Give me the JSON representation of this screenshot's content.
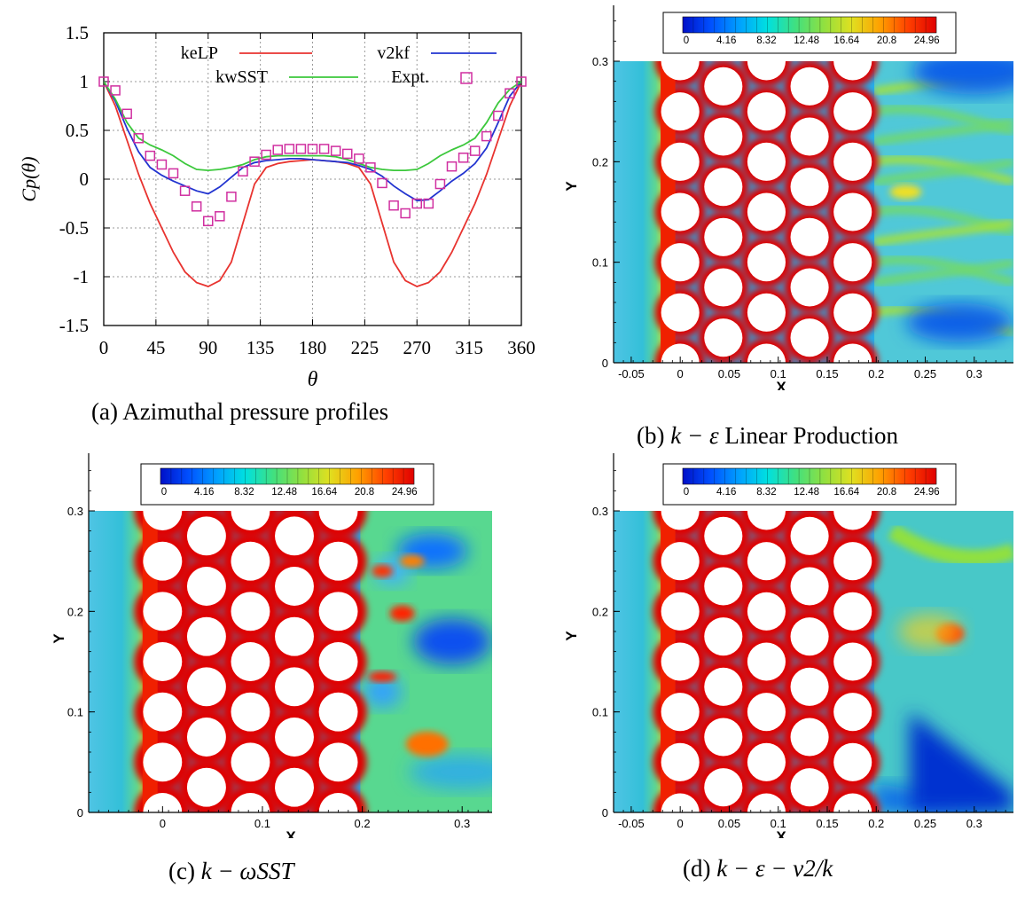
{
  "chart_data": [
    {
      "type": "line",
      "panel": "a",
      "caption": "(a) Azimuthal pressure profiles",
      "xlabel": "θ",
      "ylabel": "Cp(θ)",
      "xlim": [
        0,
        360
      ],
      "ylim": [
        -1.5,
        1.5
      ],
      "xticks": [
        0,
        45,
        90,
        135,
        180,
        225,
        270,
        315,
        360
      ],
      "yticks": [
        -1.5,
        -1,
        -0.5,
        0,
        0.5,
        1,
        1.5
      ],
      "xtick_labels": [
        "0",
        "45",
        "90",
        "135",
        "180",
        "225",
        "270",
        "315",
        "360"
      ],
      "ytick_labels": [
        "-1.5",
        "-1",
        "-0.5",
        "0",
        "0.5",
        "1",
        "1.5"
      ],
      "grid": true,
      "legend_placement": "top",
      "series": [
        {
          "name": "keLP",
          "color": "#e8332f",
          "style": "line",
          "x": [
            0,
            10,
            20,
            30,
            40,
            50,
            60,
            70,
            80,
            90,
            100,
            110,
            120,
            130,
            140,
            150,
            160,
            170,
            180,
            190,
            200,
            210,
            220,
            230,
            240,
            250,
            260,
            270,
            280,
            290,
            300,
            310,
            320,
            330,
            340,
            350,
            360
          ],
          "y": [
            1.0,
            0.75,
            0.4,
            0.05,
            -0.25,
            -0.5,
            -0.75,
            -0.95,
            -1.06,
            -1.1,
            -1.04,
            -0.85,
            -0.45,
            -0.05,
            0.12,
            0.16,
            0.18,
            0.19,
            0.2,
            0.19,
            0.18,
            0.16,
            0.12,
            -0.05,
            -0.45,
            -0.85,
            -1.04,
            -1.1,
            -1.06,
            -0.95,
            -0.75,
            -0.5,
            -0.25,
            0.05,
            0.4,
            0.75,
            1.0
          ]
        },
        {
          "name": "v2kf",
          "color": "#2234d0",
          "style": "line",
          "x": [
            0,
            10,
            20,
            30,
            40,
            50,
            60,
            70,
            80,
            90,
            100,
            110,
            120,
            130,
            140,
            150,
            160,
            170,
            180,
            190,
            200,
            210,
            220,
            230,
            240,
            250,
            260,
            270,
            280,
            290,
            300,
            310,
            320,
            330,
            340,
            350,
            360
          ],
          "y": [
            1.0,
            0.8,
            0.52,
            0.28,
            0.12,
            0.04,
            -0.02,
            -0.07,
            -0.12,
            -0.15,
            -0.08,
            0.02,
            0.12,
            0.17,
            0.19,
            0.2,
            0.21,
            0.21,
            0.2,
            0.19,
            0.18,
            0.17,
            0.14,
            0.1,
            0.03,
            -0.07,
            -0.15,
            -0.22,
            -0.21,
            -0.12,
            -0.02,
            0.06,
            0.16,
            0.32,
            0.58,
            0.85,
            1.0
          ]
        },
        {
          "name": "kwSST",
          "color": "#3cc83c",
          "style": "line",
          "x": [
            0,
            10,
            20,
            30,
            40,
            50,
            60,
            70,
            80,
            90,
            100,
            110,
            120,
            130,
            140,
            150,
            160,
            170,
            180,
            190,
            200,
            210,
            220,
            230,
            240,
            250,
            260,
            270,
            280,
            290,
            300,
            310,
            320,
            330,
            340,
            350,
            360
          ],
          "y": [
            1.0,
            0.82,
            0.58,
            0.42,
            0.35,
            0.3,
            0.24,
            0.16,
            0.1,
            0.09,
            0.1,
            0.12,
            0.15,
            0.2,
            0.23,
            0.24,
            0.24,
            0.24,
            0.24,
            0.24,
            0.23,
            0.2,
            0.16,
            0.12,
            0.1,
            0.09,
            0.09,
            0.1,
            0.16,
            0.24,
            0.3,
            0.35,
            0.42,
            0.58,
            0.78,
            0.92,
            1.0
          ]
        },
        {
          "name": "Expt.",
          "color": "#d02fa0",
          "style": "square-markers",
          "x": [
            0,
            10,
            20,
            30,
            40,
            50,
            60,
            70,
            80,
            90,
            100,
            110,
            120,
            130,
            140,
            150,
            160,
            170,
            180,
            190,
            200,
            210,
            220,
            230,
            240,
            250,
            260,
            270,
            280,
            290,
            300,
            310,
            320,
            330,
            340,
            350,
            360
          ],
          "y": [
            1.0,
            0.91,
            0.67,
            0.42,
            0.24,
            0.15,
            0.06,
            -0.12,
            -0.28,
            -0.43,
            -0.38,
            -0.18,
            0.08,
            0.18,
            0.25,
            0.3,
            0.31,
            0.31,
            0.31,
            0.31,
            0.29,
            0.26,
            0.21,
            0.12,
            -0.04,
            -0.27,
            -0.35,
            -0.25,
            -0.25,
            -0.05,
            0.13,
            0.22,
            0.29,
            0.44,
            0.65,
            0.88,
            1.0
          ]
        }
      ]
    },
    {
      "type": "heatmap",
      "panel": "b",
      "caption_prefix": "(b) ",
      "caption_math": "k − ε",
      "caption_suffix": " Linear Production",
      "xlabel": "X",
      "ylabel": "Y",
      "xtick_labels": [
        "-0.05",
        "0",
        "0.05",
        "0.1",
        "0.15",
        "0.2",
        "0.25",
        "0.3"
      ],
      "ytick_labels": [
        "0",
        "0.1",
        "0.2",
        "0.3"
      ],
      "colorbar_labels": [
        "0",
        "4.16",
        "8.32",
        "12.48",
        "16.64",
        "20.8",
        "24.96"
      ],
      "wake": "streaky"
    },
    {
      "type": "heatmap",
      "panel": "c",
      "caption_prefix": "(c) ",
      "caption_math": "k − ωSST",
      "caption_suffix": "",
      "xlabel": "X",
      "ylabel": "Y",
      "xtick_labels": [
        "0",
        "0.1",
        "0.2",
        "0.3"
      ],
      "ytick_labels": [
        "0",
        "0.1",
        "0.2",
        "0.3"
      ],
      "colorbar_labels": [
        "0",
        "4.16",
        "8.32",
        "12.48",
        "16.64",
        "20.8",
        "24.96"
      ],
      "wake": "turbulent"
    },
    {
      "type": "heatmap",
      "panel": "d",
      "caption_prefix": "(d) ",
      "caption_math": "k − ε − v2/k",
      "caption_suffix": "",
      "xlabel": "X",
      "ylabel": "Y",
      "xtick_labels": [
        "-0.05",
        "0",
        "0.05",
        "0.1",
        "0.15",
        "0.2",
        "0.25",
        "0.3"
      ],
      "ytick_labels": [
        "0",
        "0.1",
        "0.2",
        "0.3"
      ],
      "colorbar_labels": [
        "0",
        "4.16",
        "8.32",
        "12.48",
        "16.64",
        "20.8",
        "24.96"
      ],
      "wake": "spreading"
    }
  ]
}
